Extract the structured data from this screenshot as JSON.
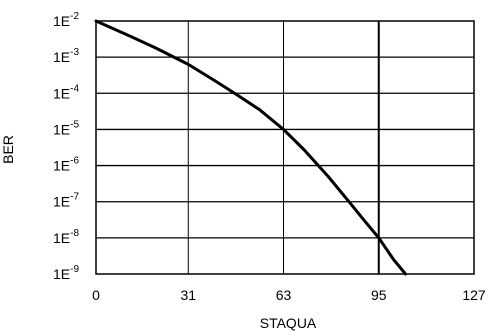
{
  "chart_data": {
    "type": "line",
    "xlabel": "STAQUA",
    "ylabel": "BER",
    "xlim": [
      0,
      127
    ],
    "ylim": [
      1e-09,
      0.01
    ],
    "y_scale": "log",
    "grid": true,
    "x_ticks": [
      {
        "value": 0,
        "label": "0"
      },
      {
        "value": 31,
        "label": "31"
      },
      {
        "value": 63,
        "label": "63"
      },
      {
        "value": 95,
        "label": "95"
      },
      {
        "value": 127,
        "label": "127"
      }
    ],
    "y_ticks": [
      {
        "value": 0.01,
        "label": "1E",
        "sup": "-2"
      },
      {
        "value": 0.001,
        "label": "1E",
        "sup": "-3"
      },
      {
        "value": 0.0001,
        "label": "1E",
        "sup": "-4"
      },
      {
        "value": 1e-05,
        "label": "1E",
        "sup": "-5"
      },
      {
        "value": 1e-06,
        "label": "1E",
        "sup": "-6"
      },
      {
        "value": 1e-07,
        "label": "1E",
        "sup": "-7"
      },
      {
        "value": 1e-08,
        "label": "1E",
        "sup": "-8"
      },
      {
        "value": 1e-09,
        "label": "1E",
        "sup": "-9"
      }
    ],
    "series": [
      {
        "x": [
          0,
          10,
          20,
          31,
          40,
          47,
          55,
          63,
          70,
          78,
          85,
          90,
          95,
          100,
          104
        ],
        "y": [
          0.01,
          0.0043,
          0.0018,
          0.00063,
          0.00022,
          9.5e-05,
          3.5e-05,
          1e-05,
          2.7e-06,
          5e-07,
          1e-07,
          3.1e-08,
          1e-08,
          2.5e-09,
          1e-09
        ]
      }
    ]
  }
}
